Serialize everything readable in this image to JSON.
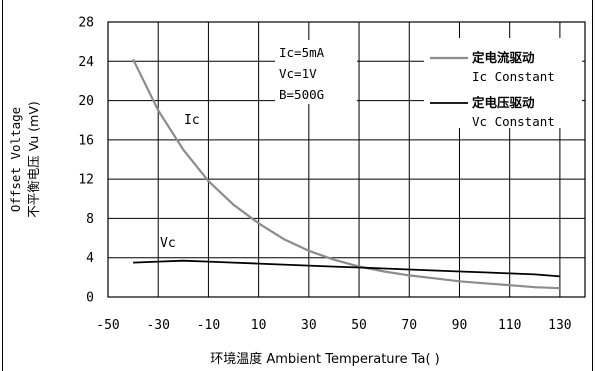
{
  "chart_data": {
    "type": "line",
    "xlabel": "环境温度 Ambient Temperature Ta(  )",
    "ylabel_en": "Offset Voltage",
    "ylabel_cn": "不平衡电压 Vu (mV)",
    "xlim": [
      -50,
      140
    ],
    "ylim": [
      0,
      28
    ],
    "xticks": [
      -50,
      -30,
      -10,
      10,
      30,
      50,
      70,
      90,
      110,
      130
    ],
    "yticks": [
      0,
      4,
      8,
      12,
      16,
      20,
      24,
      28
    ],
    "grid": true,
    "conditions": [
      "Ic=5mA",
      "Vc=1V",
      "B=500G"
    ],
    "legend": {
      "placement": "top-right",
      "entries": [
        {
          "cn": "定电流驱动",
          "en": "Ic Constant",
          "style": "gray"
        },
        {
          "cn": "定电压驱动",
          "en": "Vc Constant",
          "style": "black"
        }
      ]
    },
    "series": [
      {
        "name": "Ic",
        "color": "#8c8c8c",
        "x": [
          -40,
          -30,
          -20,
          -10,
          0,
          10,
          20,
          30,
          40,
          50,
          60,
          70,
          80,
          90,
          100,
          110,
          120,
          130
        ],
        "y": [
          24.2,
          19.0,
          15.0,
          11.8,
          9.4,
          7.5,
          5.9,
          4.7,
          3.8,
          3.1,
          2.6,
          2.2,
          1.9,
          1.6,
          1.4,
          1.2,
          1.0,
          0.9
        ]
      },
      {
        "name": "Vc",
        "color": "#000000",
        "x": [
          -40,
          -30,
          -20,
          -10,
          0,
          10,
          20,
          30,
          40,
          50,
          60,
          70,
          80,
          90,
          100,
          110,
          120,
          130
        ],
        "y": [
          3.5,
          3.6,
          3.7,
          3.6,
          3.5,
          3.4,
          3.3,
          3.2,
          3.1,
          3.0,
          2.9,
          2.8,
          2.7,
          2.6,
          2.5,
          2.4,
          2.3,
          2.1
        ]
      }
    ]
  },
  "colors": {
    "ic_curve": "#8c8c8c",
    "vc_curve": "#000000",
    "grid": "#000000"
  }
}
